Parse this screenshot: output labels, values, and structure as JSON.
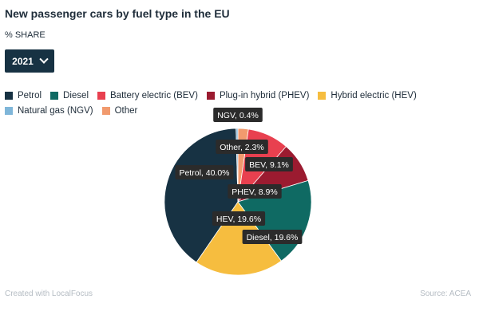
{
  "header": {
    "title": "New passenger cars by fuel type in the EU",
    "subtitle": "% SHARE"
  },
  "year_select": {
    "value": "2021"
  },
  "footer": {
    "credit": "Created with LocalFocus",
    "source": "Source: ACEA"
  },
  "chart_data": {
    "type": "pie",
    "title": "New passenger cars by fuel type in the EU",
    "subtitle": "% SHARE",
    "legend_position": "top-left",
    "slices": [
      {
        "name": "Petrol",
        "value": 40.0,
        "color": "#173243",
        "label": "Petrol, 40.0%"
      },
      {
        "name": "Diesel",
        "value": 19.6,
        "color": "#0f6a63",
        "label": "Diesel, 19.6%"
      },
      {
        "name": "Battery electric (BEV)",
        "value": 9.1,
        "color": "#e8404f",
        "label": "BEV, 9.1%"
      },
      {
        "name": "Plug-in hybrid (PHEV)",
        "value": 8.9,
        "color": "#9b1b30",
        "label": "PHEV, 8.9%"
      },
      {
        "name": "Hybrid electric (HEV)",
        "value": 19.6,
        "color": "#f6bd3f",
        "label": "HEV, 19.6%"
      },
      {
        "name": "Natural gas (NGV)",
        "value": 0.4,
        "color": "#7fb6d9",
        "label": "NGV, 0.4%"
      },
      {
        "name": "Other",
        "value": 2.3,
        "color": "#f19a6e",
        "label": "Other, 2.3%"
      }
    ]
  }
}
